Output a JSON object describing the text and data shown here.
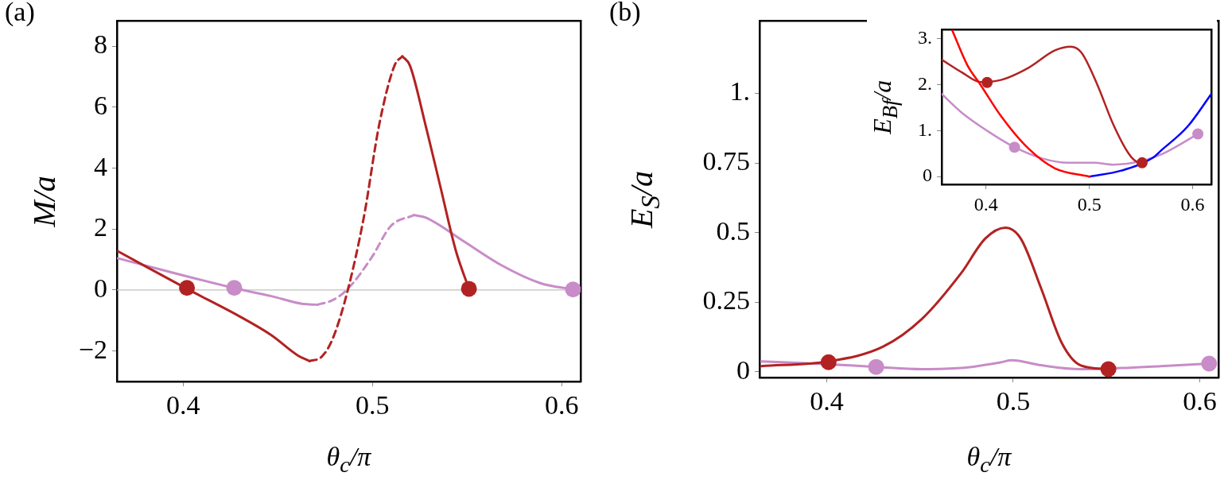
{
  "chart_data": [
    {
      "type": "line",
      "title": "(a)",
      "xlabel": "θ$_{c}$/π",
      "ylabel": "M/a",
      "xlim": [
        0.365,
        0.61
      ],
      "ylim": [
        -3,
        8.83
      ],
      "xticks": [
        0.4,
        0.5,
        0.6
      ],
      "yticks": [
        {
          "value": -2,
          "label": "−2"
        },
        0,
        2,
        4,
        6,
        8
      ],
      "ref_lines": [
        {
          "axis": "y",
          "value": 0,
          "color": "#c0c0c0"
        }
      ],
      "series": [
        {
          "color": "#b22222",
          "line_style": "solid",
          "x": [
            0.3656,
            0.402,
            0.43,
            0.4466,
            0.4607,
            0.4668
          ],
          "values": [
            1.27,
            0.04,
            -0.87,
            -1.48,
            -2.15,
            -2.33
          ]
        },
        {
          "color": "#b22222",
          "line_style": "dashed",
          "x": [
            0.4668,
            0.473,
            0.479,
            0.487,
            0.4955,
            0.5036,
            0.5117,
            0.5158
          ],
          "values": [
            -2.33,
            -2.2,
            -1.6,
            0,
            2.4,
            5.43,
            7.37,
            7.67
          ]
        },
        {
          "color": "#b22222",
          "line_style": "solid",
          "x": [
            0.5158,
            0.5198,
            0.528,
            0.536,
            0.544,
            0.551
          ],
          "values": [
            7.67,
            7.37,
            5.43,
            3.37,
            1.31,
            0.04
          ]
        },
        {
          "color": "#c88cc8",
          "line_style": "solid",
          "x": [
            0.3656,
            0.4265,
            0.4466,
            0.4628,
            0.471
          ],
          "values": [
            1.04,
            0.07,
            -0.2,
            -0.45,
            -0.48
          ]
        },
        {
          "color": "#c88cc8",
          "line_style": "dashed",
          "x": [
            0.471,
            0.479,
            0.487,
            0.4996,
            0.5097,
            0.522
          ],
          "values": [
            -0.48,
            -0.33,
            0.04,
            1.07,
            2.1,
            2.46
          ]
        },
        {
          "color": "#c88cc8",
          "line_style": "solid",
          "x": [
            0.522,
            0.528,
            0.548,
            0.568,
            0.589,
            0.606
          ],
          "values": [
            2.46,
            2.38,
            1.61,
            0.82,
            0.22,
            0.02
          ]
        },
        {
          "type": "scatter",
          "marker": "circle",
          "color": "#b22222",
          "x": [
            0.402,
            0.551
          ],
          "values": [
            0.07,
            0.04
          ]
        },
        {
          "type": "scatter",
          "marker": "circle",
          "color": "#c88cc8",
          "x": [
            0.427,
            0.606
          ],
          "values": [
            0.07,
            0.02
          ]
        }
      ]
    },
    {
      "type": "line",
      "title": "(b)",
      "xlabel": "θ$_{c}$/π",
      "ylabel": "E$_{S}$/a",
      "xlim": [
        0.364,
        0.61
      ],
      "ylim": [
        -0.02,
        1.26
      ],
      "xticks": [
        0.4,
        0.5,
        0.6
      ],
      "yticks": [
        0,
        0.25,
        0.5,
        0.75,
        {
          "value": 1,
          "label": "1."
        }
      ],
      "series": [
        {
          "color": "#b22222",
          "line_style": "solid",
          "x": [
            0.365,
            0.4,
            0.43,
            0.451,
            0.472,
            0.485,
            0.4958,
            0.504,
            0.515,
            0.526,
            0.536,
            0.551
          ],
          "values": [
            0.021,
            0.037,
            0.09,
            0.19,
            0.354,
            0.479,
            0.518,
            0.479,
            0.299,
            0.104,
            0.024,
            0.01
          ]
        },
        {
          "color": "#c88cc8",
          "line_style": "solid",
          "x": [
            0.365,
            0.4,
            0.4265,
            0.451,
            0.472,
            0.4936,
            0.499,
            0.515,
            0.536,
            0.558,
            0.579,
            0.605
          ],
          "values": [
            0.038,
            0.028,
            0.018,
            0.01,
            0.014,
            0.035,
            0.042,
            0.024,
            0.01,
            0.014,
            0.021,
            0.03
          ]
        },
        {
          "type": "scatter",
          "marker": "circle",
          "color": "#b22222",
          "x": [
            0.401,
            0.551
          ],
          "values": [
            0.035,
            0.01
          ]
        },
        {
          "type": "scatter",
          "marker": "circle",
          "color": "#c88cc8",
          "x": [
            0.4265,
            0.605
          ],
          "values": [
            0.018,
            0.03
          ]
        }
      ]
    },
    {
      "type": "line",
      "ylabel": "E$_{Bf}$/a",
      "xlim": [
        0.357,
        0.618
      ],
      "ylim": [
        -0.17,
        3.2
      ],
      "xticks": [
        0.4,
        0.5,
        0.6
      ],
      "yticks": [
        0,
        {
          "value": 1,
          "label": "1."
        },
        {
          "value": 2,
          "label": "2."
        },
        {
          "value": 3,
          "label": "3."
        }
      ],
      "series": [
        {
          "color": "#ff0000",
          "line_style": "solid",
          "x": [
            0.367,
            0.3818,
            0.3946,
            0.415,
            0.441,
            0.4666,
            0.5
          ],
          "values": [
            3.2,
            2.43,
            2.0,
            1.3,
            0.61,
            0.18,
            0
          ]
        },
        {
          "color": "#0000ff",
          "line_style": "solid",
          "x": [
            0.5,
            0.531,
            0.562,
            0.569,
            0.595,
            0.618
          ],
          "values": [
            0,
            0.13,
            0.42,
            0.56,
            1.09,
            1.8
          ]
        },
        {
          "color": "#b22222",
          "line_style": "solid",
          "x": [
            0.357,
            0.3766,
            0.3946,
            0.415,
            0.441,
            0.4666,
            0.482,
            0.4923,
            0.5077,
            0.523,
            0.538,
            0.546,
            0.551
          ],
          "values": [
            2.55,
            2.27,
            2.06,
            2.11,
            2.37,
            2.75,
            2.83,
            2.7,
            2.0,
            1.14,
            0.5,
            0.32,
            0.3
          ]
        },
        {
          "color": "#c88cc8",
          "line_style": "solid",
          "x": [
            0.357,
            0.3766,
            0.4023,
            0.4275,
            0.4538,
            0.4795,
            0.505,
            0.523,
            0.551,
            0.5693,
            0.587,
            0.605
          ],
          "values": [
            1.8,
            1.39,
            0.98,
            0.64,
            0.4,
            0.3,
            0.3,
            0.26,
            0.34,
            0.48,
            0.69,
            0.93
          ]
        },
        {
          "type": "scatter",
          "marker": "circle",
          "color": "#b22222",
          "x": [
            0.401,
            0.551
          ],
          "values": [
            2.05,
            0.3
          ]
        },
        {
          "type": "scatter",
          "marker": "circle",
          "color": "#c88cc8",
          "x": [
            0.4275,
            0.605
          ],
          "values": [
            0.64,
            0.93
          ]
        }
      ]
    }
  ]
}
